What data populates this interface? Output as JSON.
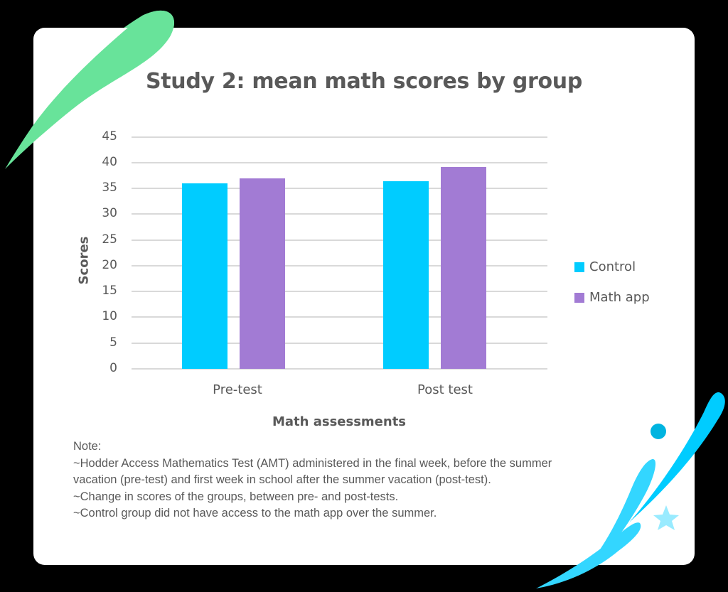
{
  "chart_data": {
    "type": "bar",
    "title": "Study 2: mean math scores by group",
    "xlabel": "Math assessments",
    "ylabel": "Scores",
    "categories": [
      "Pre-test",
      "Post test"
    ],
    "series": [
      {
        "name": "Control",
        "color": "#00ccff",
        "values": [
          36.0,
          36.4
        ]
      },
      {
        "name": "Math app",
        "color": "#a27bd4",
        "values": [
          37.0,
          39.2
        ]
      }
    ],
    "ylim": [
      0,
      45
    ],
    "yticks": [
      "0",
      "5",
      "10",
      "15",
      "20",
      "25",
      "30",
      "35",
      "40",
      "45"
    ],
    "grid": true,
    "legend_position": "right"
  },
  "note": {
    "heading": "Note:",
    "lines": [
      "~Hodder Access Mathematics Test (AMT) administered in the final week, before the summer",
      "vacation (pre-test) and first week in school after the summer vacation (post-test).",
      "~Change in scores of the groups, between pre- and post-tests.",
      "~Control group did not have access to the math app over the summer."
    ]
  },
  "colors": {
    "background": "#000000",
    "card": "#ffffff",
    "text": "#595959",
    "gridline": "#d9d9d9",
    "decor_green": "#68e39a",
    "decor_blue": "#33d6ff",
    "decor_dot": "#00b4e0",
    "decor_star": "#99ebff"
  }
}
